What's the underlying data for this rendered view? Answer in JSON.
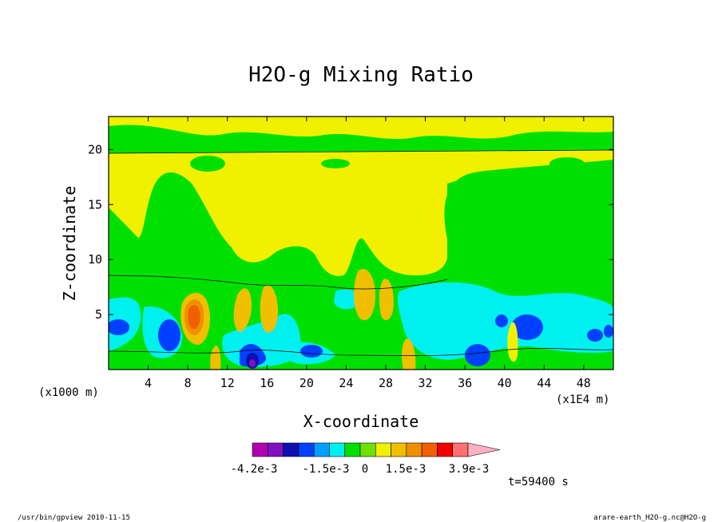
{
  "chart_data": {
    "type": "heatmap",
    "title": "H2O-g Mixing Ratio",
    "xlabel": "X-coordinate",
    "ylabel": "Z-coordinate",
    "x_unit_left": "(x1000 m)",
    "x_unit_right": "(x1E4 m)",
    "xlim": [
      0,
      51
    ],
    "ylim": [
      0,
      23
    ],
    "x_ticks": [
      "4",
      "8",
      "12",
      "16",
      "20",
      "24",
      "28",
      "32",
      "36",
      "40",
      "44",
      "48"
    ],
    "y_ticks": [
      "5",
      "10",
      "15",
      "20"
    ],
    "colorbar": {
      "colors": [
        "#b000b0",
        "#8010c0",
        "#1010b0",
        "#0040ff",
        "#00a0ff",
        "#00f0f0",
        "#00e000",
        "#70e000",
        "#f0f000",
        "#f0c000",
        "#f09000",
        "#f06000",
        "#f00000",
        "#ff7070",
        "#ffb0c0"
      ],
      "labels": [
        "-4.2e-3",
        "-1.5e-3",
        "0",
        "1.5e-3",
        "3.9e-3"
      ]
    },
    "time_label": "t=59400 s"
  },
  "footer": {
    "left": "/usr/bin/gpview  2010-11-15",
    "right": "arare-earth_H2O-g.nc@H2O-g"
  }
}
